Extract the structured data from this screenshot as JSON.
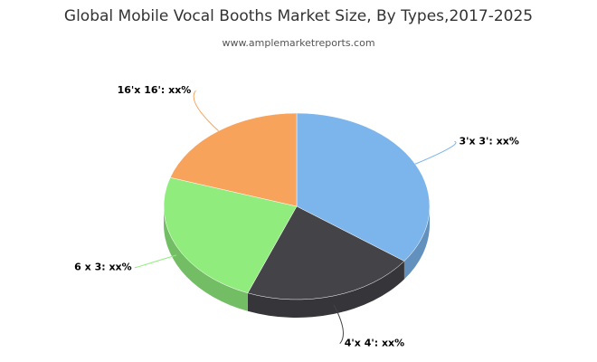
{
  "chart_data": {
    "type": "pie",
    "title": "Global Mobile Vocal Booths Market Size, By Types,2017-2025",
    "subtitle": "www.amplemarketreports.com",
    "categories": [
      "3'x 3': xx%",
      "4'x 4': xx%",
      "6 x 3: xx%",
      "16'x 16': xx%"
    ],
    "values": [
      35,
      21,
      24,
      20
    ],
    "colors": [
      "#7cb5ec",
      "#434348",
      "#90ed7d",
      "#f7a35c"
    ]
  }
}
